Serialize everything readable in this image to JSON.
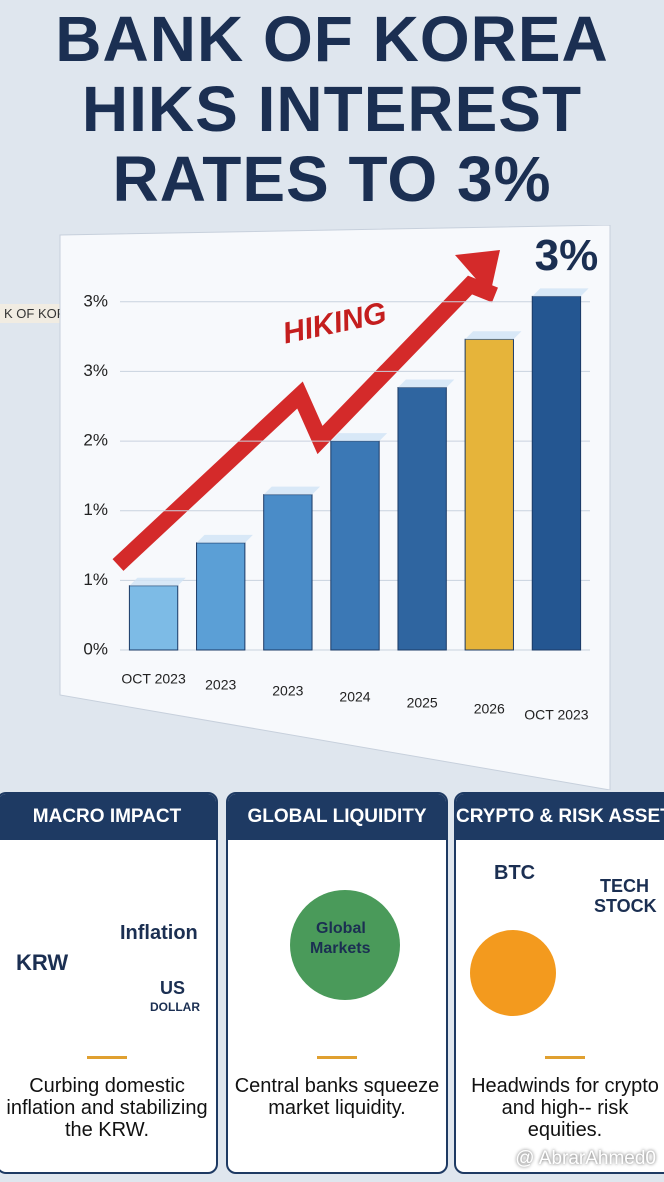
{
  "title_lines": [
    "BANK OF KOREA",
    "HIKS INTEREST",
    "RATES TO 3%"
  ],
  "background_sign": "K OF KORE",
  "chart_data": {
    "type": "bar",
    "categories": [
      "OCT 2023",
      "2023",
      "2023",
      "2024",
      "2025",
      "2026",
      "OCT 2023"
    ],
    "values": [
      0.6,
      1.0,
      1.45,
      1.95,
      2.45,
      2.9,
      3.3
    ],
    "value_labels": [
      null,
      null,
      null,
      null,
      null,
      null,
      "3%"
    ],
    "colors": [
      "#7dbbe6",
      "#5b9fd6",
      "#4a8cc8",
      "#3b78b5",
      "#2f65a0",
      "#e6b43a",
      "#245691"
    ],
    "ylim": [
      0,
      3.5
    ],
    "yticks": [
      {
        "value": 0,
        "label": "0%"
      },
      {
        "value": 0.65,
        "label": "1%"
      },
      {
        "value": 1.3,
        "label": "1%"
      },
      {
        "value": 1.95,
        "label": "2%"
      },
      {
        "value": 2.6,
        "label": "3%"
      },
      {
        "value": 3.25,
        "label": "3%"
      }
    ],
    "grid": true,
    "annotation": "HIKING"
  },
  "cards": [
    {
      "title": "MACRO IMPACT",
      "labels": [
        "KRW",
        "Inflation",
        "US",
        "DOLLAR"
      ],
      "text": "Curbing domestic inflation and stabilizing the KRW."
    },
    {
      "title": "GLOBAL LIQUIDITY",
      "labels": [
        "Global",
        "Markets"
      ],
      "text": "Central banks squeeze market liquidity."
    },
    {
      "title": "CRYPTO & RISK ASSETS",
      "labels": [
        "BTC",
        "TECH",
        "STOCK"
      ],
      "text": "Headwinds for crypto and high-- risk equities."
    }
  ],
  "watermark": "@ AbrarAhmed0"
}
